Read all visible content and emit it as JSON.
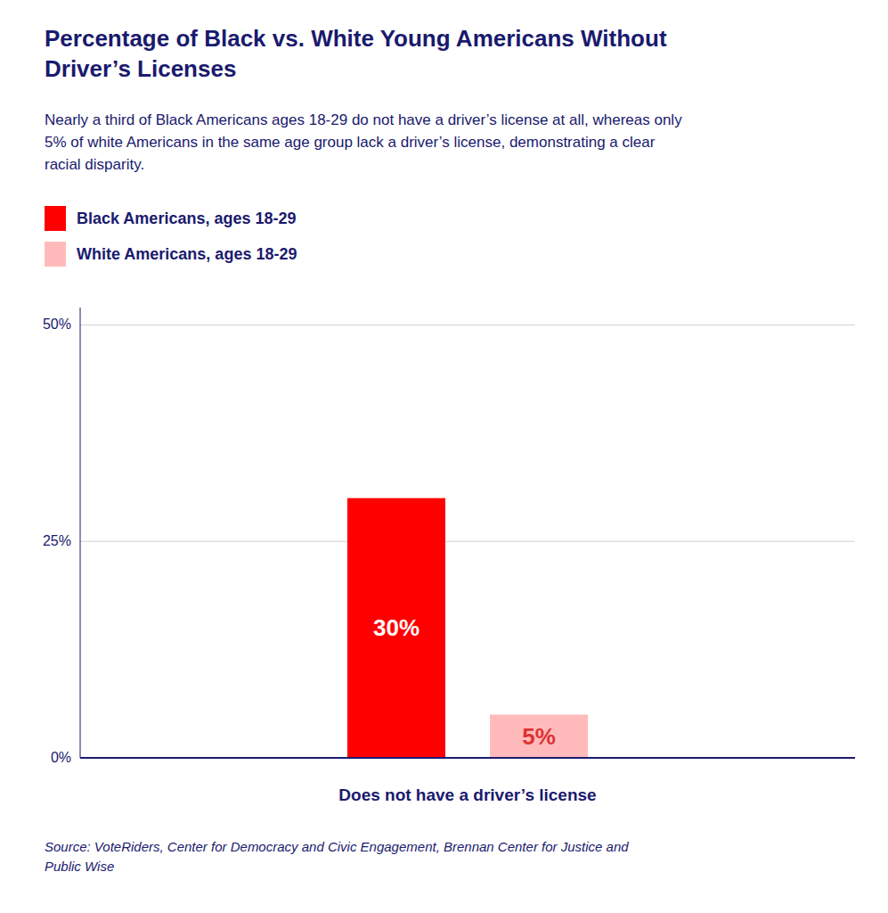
{
  "chart_data": {
    "type": "bar",
    "title": "Percentage of Black vs. White Young Americans Without\nDriver’s Licenses",
    "subtitle": "Nearly a third of Black Americans ages 18-29 do not have a driver’s license at all, whereas only\n5% of white Americans in the same age group lack a driver’s license, demonstrating a clear\nracial disparity.",
    "xlabel": "Does not have a driver’s license",
    "source": "Source: VoteRiders, Center for Democracy and Civic Engagement, Brennan Center for Justice and\nPublic Wise",
    "categories": [
      null
    ],
    "series": [
      {
        "name": "Black Americans, ages 18-29",
        "color": "#FF0000",
        "values": [
          30
        ],
        "value_labels": [
          "30%"
        ]
      },
      {
        "name": "White Americans, ages 18-29",
        "color": "#FFBBBB",
        "values": [
          5
        ],
        "value_labels": [
          "5%"
        ]
      }
    ],
    "ylim": [
      0,
      52
    ],
    "yticks": [
      {
        "value": 0,
        "label": "0%"
      },
      {
        "value": 25,
        "label": "25%"
      },
      {
        "value": 50,
        "label": "50%"
      }
    ],
    "grid": true,
    "legend": "upper left",
    "data_labels": true,
    "tick_labels": "y"
  }
}
